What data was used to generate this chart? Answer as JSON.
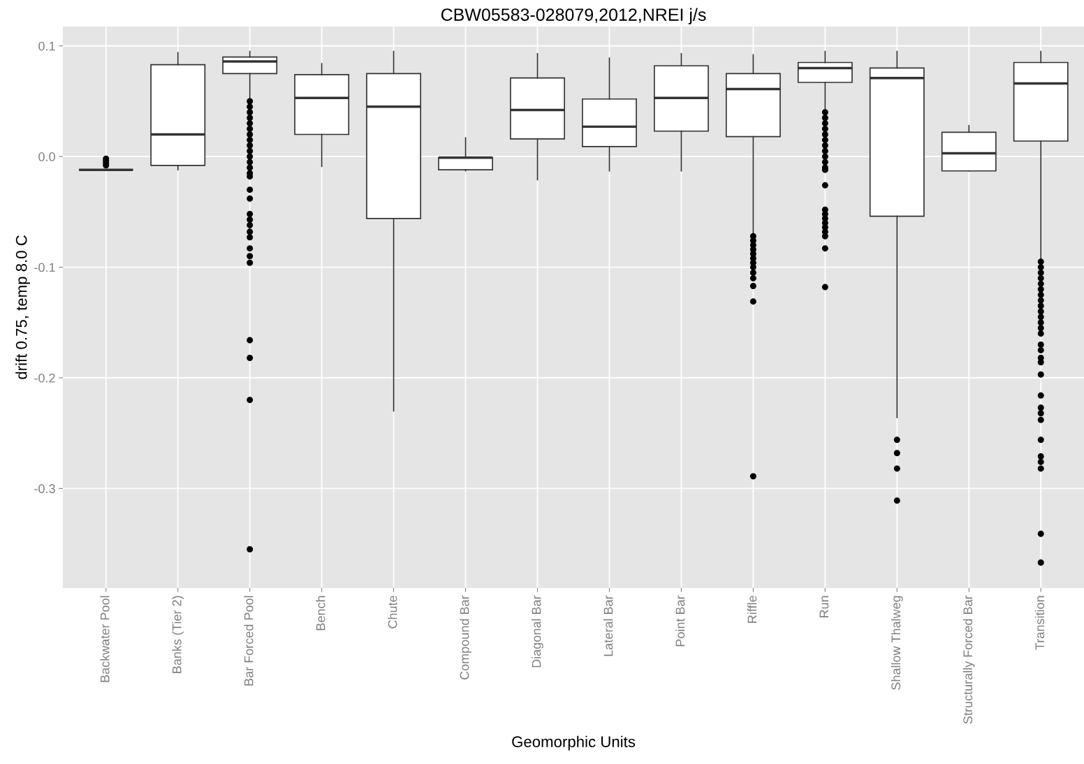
{
  "chart_data": {
    "type": "box",
    "title": "CBW05583-028079,2012,NREI j/s",
    "xlabel": "Geomorphic Units",
    "ylabel": "drift 0.75, temp 8.0 C",
    "categories": [
      "Backwater Pool",
      "Banks (Tier 2)",
      "Bar Forced Pool",
      "Bench",
      "Chute",
      "Compound Bar",
      "Diagonal Bar",
      "Lateral Bar",
      "Point Bar",
      "Riffle",
      "Run",
      "Shallow Thalweg",
      "Structurally Forced Bar",
      "Transition"
    ],
    "boxes": [
      {
        "low": -0.012,
        "q1": -0.012,
        "median": -0.012,
        "q3": -0.012,
        "high": -0.012,
        "outliers": [
          -0.002,
          -0.004,
          -0.006,
          -0.008
        ]
      },
      {
        "low": -0.012,
        "q1": -0.008,
        "median": 0.02,
        "q3": 0.083,
        "high": 0.094
      },
      {
        "low": 0.052,
        "q1": 0.075,
        "median": 0.086,
        "q3": 0.09,
        "high": 0.095,
        "outliers": [
          0.05,
          0.045,
          0.04,
          0.035,
          0.03,
          0.025,
          0.02,
          0.015,
          0.01,
          0.005,
          0.0,
          -0.005,
          -0.01,
          -0.015,
          -0.018,
          -0.03,
          -0.038,
          -0.052,
          -0.057,
          -0.062,
          -0.068,
          -0.073,
          -0.083,
          -0.09,
          -0.096,
          -0.166,
          -0.182,
          -0.22,
          -0.355
        ]
      },
      {
        "low": -0.009,
        "q1": 0.02,
        "median": 0.053,
        "q3": 0.074,
        "high": 0.084
      },
      {
        "low": -0.23,
        "q1": -0.056,
        "median": 0.045,
        "q3": 0.075,
        "high": 0.095
      },
      {
        "low": -0.013,
        "q1": -0.012,
        "median": -0.001,
        "q3": -0.001,
        "high": 0.017
      },
      {
        "low": -0.021,
        "q1": 0.016,
        "median": 0.042,
        "q3": 0.071,
        "high": 0.093
      },
      {
        "low": -0.013,
        "q1": 0.009,
        "median": 0.027,
        "q3": 0.052,
        "high": 0.089
      },
      {
        "low": -0.013,
        "q1": 0.023,
        "median": 0.053,
        "q3": 0.082,
        "high": 0.093
      },
      {
        "low": -0.069,
        "q1": 0.018,
        "median": 0.061,
        "q3": 0.075,
        "high": 0.092,
        "outliers": [
          -0.072,
          -0.076,
          -0.08,
          -0.084,
          -0.088,
          -0.092,
          -0.096,
          -0.1,
          -0.105,
          -0.11,
          -0.117,
          -0.131,
          -0.289
        ]
      },
      {
        "low": 0.042,
        "q1": 0.067,
        "median": 0.08,
        "q3": 0.085,
        "high": 0.095,
        "outliers": [
          0.04,
          0.035,
          0.03,
          0.025,
          0.02,
          0.015,
          0.01,
          0.005,
          0.0,
          -0.005,
          -0.01,
          -0.012,
          -0.026,
          -0.048,
          -0.052,
          -0.056,
          -0.06,
          -0.064,
          -0.068,
          -0.072,
          -0.083,
          -0.118
        ]
      },
      {
        "low": -0.236,
        "q1": -0.054,
        "median": 0.071,
        "q3": 0.08,
        "high": 0.095,
        "outliers": [
          -0.256,
          -0.268,
          -0.282,
          -0.311
        ]
      },
      {
        "low": -0.013,
        "q1": -0.013,
        "median": 0.003,
        "q3": 0.022,
        "high": 0.028
      },
      {
        "low": -0.092,
        "q1": 0.014,
        "median": 0.066,
        "q3": 0.085,
        "high": 0.095,
        "outliers": [
          -0.095,
          -0.1,
          -0.105,
          -0.11,
          -0.115,
          -0.12,
          -0.125,
          -0.13,
          -0.135,
          -0.14,
          -0.145,
          -0.15,
          -0.155,
          -0.16,
          -0.17,
          -0.175,
          -0.182,
          -0.186,
          -0.197,
          -0.216,
          -0.227,
          -0.232,
          -0.238,
          -0.256,
          -0.271,
          -0.276,
          -0.282,
          -0.341,
          -0.367
        ]
      }
    ],
    "ylim": [
      -0.39,
      0.1175
    ],
    "yticks": [
      {
        "value": -0.3,
        "label": "-0.3"
      },
      {
        "value": -0.2,
        "label": "-0.2"
      },
      {
        "value": -0.1,
        "label": "-0.1"
      },
      {
        "value": 0,
        "label": "0.0"
      },
      {
        "value": 0.1,
        "label": "0.1"
      }
    ],
    "grid": true
  }
}
